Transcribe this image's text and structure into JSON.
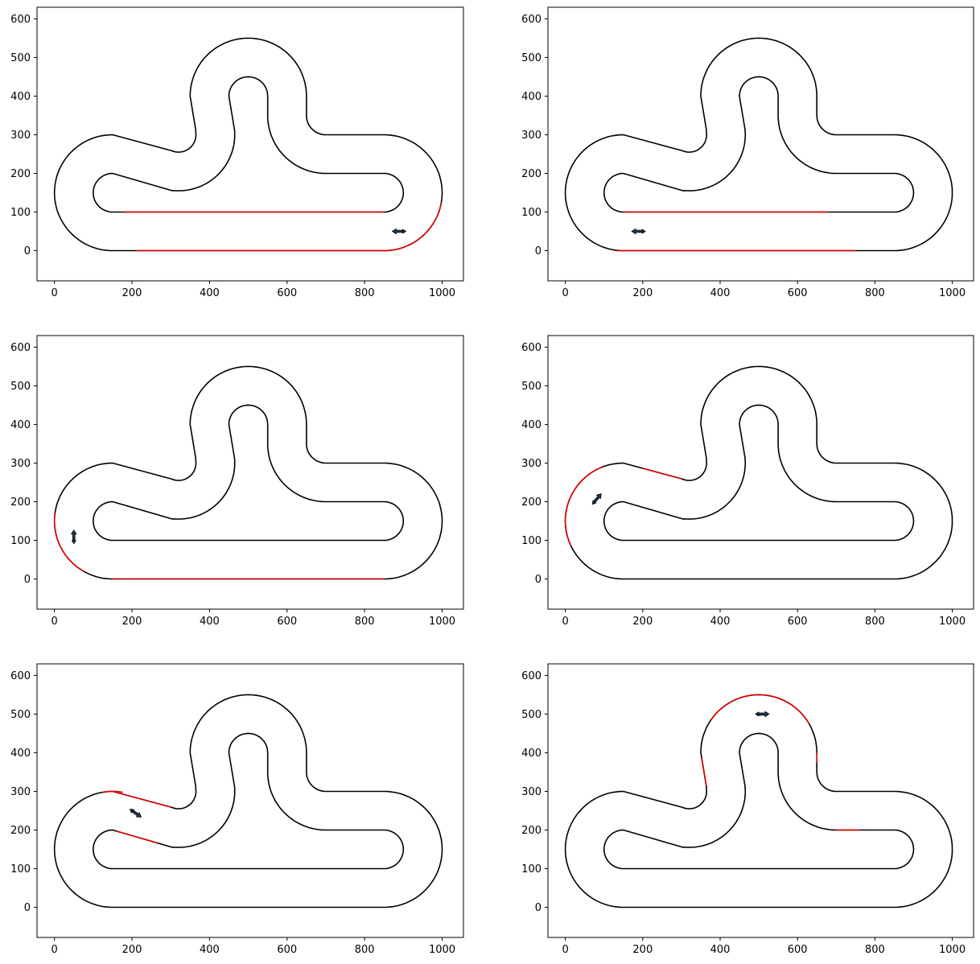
{
  "colors": {
    "track": "#000000",
    "highlight": "#e00000",
    "car_fill": "#1f3b57",
    "frame": "#000000",
    "background": "#ffffff"
  },
  "chart_data": [
    {
      "type": "line",
      "panel": "row 1, col 1",
      "xlim": [
        -45,
        1055
      ],
      "ylim": [
        -78,
        630
      ],
      "xticks": [
        0,
        200,
        400,
        600,
        800,
        1000
      ],
      "yticks": [
        0,
        100,
        200,
        300,
        400,
        500,
        600
      ],
      "grid": false,
      "highlights": [
        {
          "series": "inner",
          "x": [
            180,
            850
          ]
        },
        {
          "series": "outer",
          "x": [
            210,
            850
          ]
        },
        {
          "series": "outer_arc",
          "angle_deg": [
            -90,
            -10
          ]
        }
      ],
      "car": {
        "x": 888,
        "y": 50,
        "heading_deg": 180
      }
    },
    {
      "type": "line",
      "panel": "row 1, col 2",
      "xlim": [
        -45,
        1055
      ],
      "ylim": [
        -78,
        630
      ],
      "xticks": [
        0,
        200,
        400,
        600,
        800,
        1000
      ],
      "yticks": [
        0,
        100,
        200,
        300,
        400,
        500,
        600
      ],
      "grid": false,
      "highlights": [
        {
          "series": "inner",
          "x": [
            150,
            680
          ]
        },
        {
          "series": "outer",
          "x": [
            130,
            750
          ]
        }
      ],
      "car": {
        "x": 188,
        "y": 50,
        "heading_deg": 180
      }
    },
    {
      "type": "line",
      "panel": "row 2, col 1",
      "xlim": [
        -45,
        1055
      ],
      "ylim": [
        -78,
        630
      ],
      "xticks": [
        0,
        200,
        400,
        600,
        800,
        1000
      ],
      "yticks": [
        0,
        100,
        200,
        300,
        400,
        500,
        600
      ],
      "grid": false,
      "highlights": [
        {
          "series": "outer",
          "x": [
            150,
            850
          ]
        },
        {
          "series": "left_arc",
          "angle_deg": [
            172,
            240
          ]
        }
      ],
      "car": {
        "x": 50,
        "y": 110,
        "heading_deg": 90
      }
    },
    {
      "type": "line",
      "panel": "row 2, col 2",
      "xlim": [
        -45,
        1055
      ],
      "ylim": [
        -78,
        630
      ],
      "xticks": [
        0,
        200,
        400,
        600,
        800,
        1000
      ],
      "yticks": [
        0,
        100,
        200,
        300,
        400,
        500,
        600
      ],
      "grid": false,
      "highlights": [
        {
          "series": "left_arc",
          "angle_deg": [
            112,
            205
          ]
        },
        {
          "series": "upper_straight",
          "x": [
            200,
            300
          ]
        }
      ],
      "car": {
        "x": 82,
        "y": 208,
        "heading_deg": 50
      }
    },
    {
      "type": "line",
      "panel": "row 3, col 1",
      "xlim": [
        -45,
        1055
      ],
      "ylim": [
        -78,
        630
      ],
      "xticks": [
        0,
        200,
        400,
        600,
        800,
        1000
      ],
      "yticks": [
        0,
        100,
        200,
        300,
        400,
        500,
        600
      ],
      "grid": false,
      "highlights": [
        {
          "series": "left_arc",
          "angle_deg": [
            80,
            100
          ]
        },
        {
          "series": "upper_straight",
          "x": [
            150,
            300
          ]
        },
        {
          "series": "inner_left_straight",
          "x": [
            160,
            265
          ]
        }
      ],
      "car": {
        "x": 210,
        "y": 243,
        "heading_deg": -35
      }
    },
    {
      "type": "line",
      "panel": "row 3, col 2",
      "xlim": [
        -45,
        1055
      ],
      "ylim": [
        -78,
        630
      ],
      "xticks": [
        0,
        200,
        400,
        600,
        800,
        1000
      ],
      "yticks": [
        0,
        100,
        200,
        300,
        400,
        500,
        600
      ],
      "grid": false,
      "highlights": [
        {
          "series": "loop_outer_arc",
          "angle_deg": [
            30,
            145
          ]
        },
        {
          "series": "loop_left_wall",
          "y": [
            315,
            385
          ]
        },
        {
          "series": "loop_right_wall",
          "y": [
            375,
            400
          ]
        },
        {
          "series": "right_inner_top",
          "x": [
            700,
            760
          ]
        }
      ],
      "car": {
        "x": 510,
        "y": 500,
        "heading_deg": 0
      }
    }
  ]
}
